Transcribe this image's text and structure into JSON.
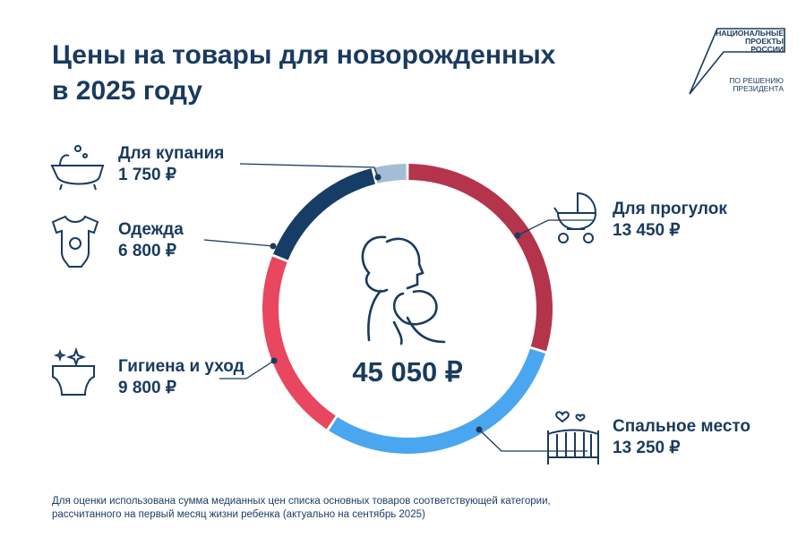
{
  "title_line1": "Цены на товары для новорожденных",
  "title_line2": "в 2025 году",
  "logo": {
    "line1": "НАЦИОНАЛЬНЫЕ",
    "line2": "ПРОЕКТЫ",
    "line3": "РОССИИ",
    "line4": "ПО РЕШЕНИЮ",
    "line5": "ПРЕЗИДЕНТА"
  },
  "chart_data": {
    "type": "pie",
    "style": "donut",
    "total_label": "45 050 ₽",
    "categories": [
      "Для прогулок",
      "Спальное место",
      "Гигиена и уход",
      "Одежда",
      "Для купания"
    ],
    "values": [
      13450,
      13250,
      9800,
      6800,
      1750
    ],
    "value_labels": [
      "13 450 ₽",
      "13 250 ₽",
      "9 800 ₽",
      "6 800 ₽",
      "1 750 ₽"
    ],
    "colors": [
      "#b3344b",
      "#4aa6ef",
      "#e8475f",
      "#163d66",
      "#a3bdd4"
    ],
    "icons": [
      "stroller-icon",
      "crib-icon",
      "diaper-icon",
      "bodysuit-icon",
      "bathtub-icon"
    ]
  },
  "footnote_line1": "Для оценки использована сумма медианных цен списка основных товаров соответствующей категории,",
  "footnote_line2": "рассчитанного на первый месяц жизни ребенка (актуально на сентябрь 2025)"
}
